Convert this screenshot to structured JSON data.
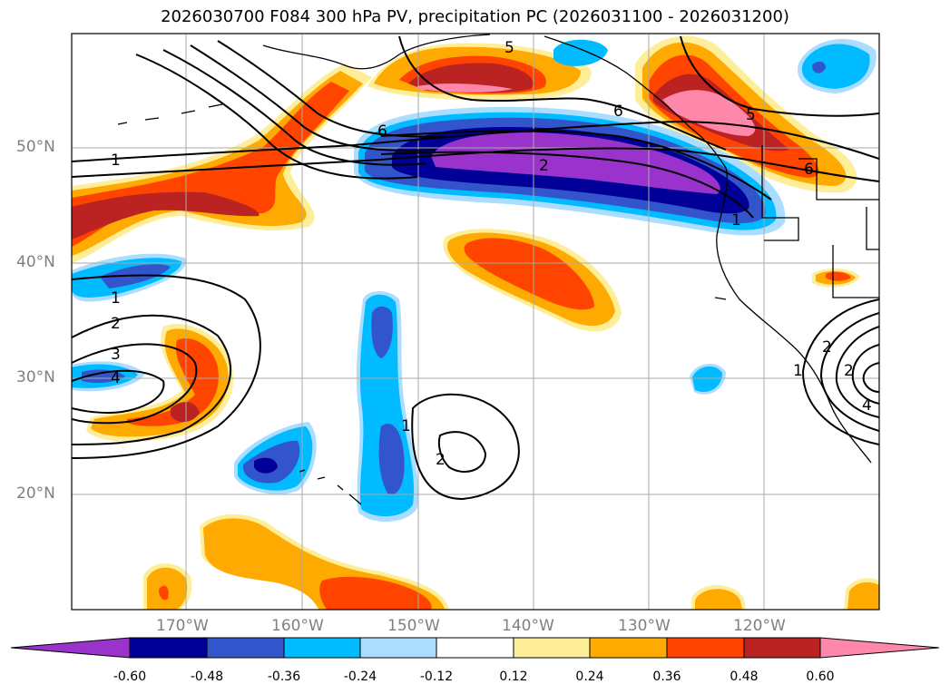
{
  "title": "2026030700 F084 300 hPa PV, precipitation PC (2026031100 - 2026031200)",
  "map": {
    "projection": "PlateCarree",
    "extent": {
      "lon_min": -180,
      "lon_max": -110,
      "lat_min": 10,
      "lat_max": 60
    },
    "gridlines": true,
    "lat_labels": [
      "50°N",
      "40°N",
      "30°N",
      "20°N"
    ],
    "lon_labels": [
      "170°W",
      "160°W",
      "150°W",
      "140°W",
      "130°W",
      "120°W"
    ],
    "contour_labels": [
      "1",
      "1",
      "2",
      "3",
      "4",
      "5",
      "5",
      "6",
      "6",
      "2",
      "1",
      "1",
      "2",
      "1",
      "2",
      "2",
      "4",
      "6"
    ]
  },
  "colorbar": {
    "extend": "both",
    "ticks": [
      "-0.60",
      "-0.48",
      "-0.36",
      "-0.24",
      "-0.12",
      "0.12",
      "0.24",
      "0.36",
      "0.48",
      "0.60"
    ],
    "colors": [
      "#9933cc",
      "#000099",
      "#3355cc",
      "#00bbff",
      "#aaddff",
      "#ffffff",
      "#ffee99",
      "#ffaa00",
      "#ff4400",
      "#bb2222",
      "#ff88aa"
    ]
  }
}
